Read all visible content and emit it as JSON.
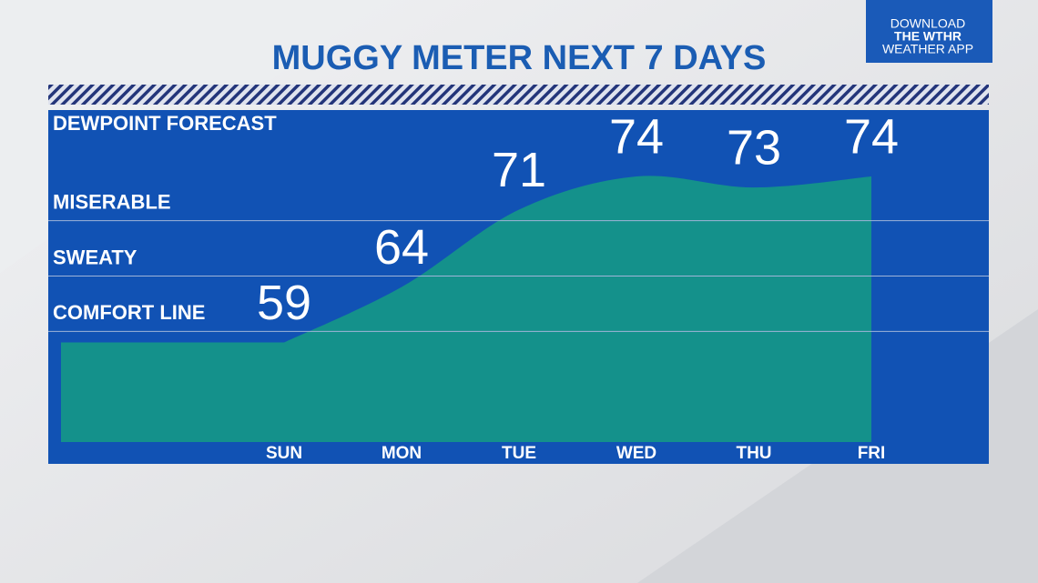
{
  "chart_data": {
    "type": "area",
    "title": "MUGGY METER NEXT 7 DAYS",
    "subtitle": "DEWPOINT FORECAST",
    "categories": [
      "SUN",
      "MON",
      "TUE",
      "WED",
      "THU",
      "FRI"
    ],
    "values": [
      59,
      64,
      71,
      74,
      73,
      74
    ],
    "color": "#14918b",
    "ylim": [
      50,
      80
    ],
    "yticks": [
      {
        "value": 60,
        "label": "COMFORT LINE"
      },
      {
        "value": 65,
        "label": "SWEATY"
      },
      {
        "value": 70,
        "label": "MISERABLE"
      }
    ],
    "grid": true
  },
  "badge": {
    "lines": [
      "DOWNLOAD",
      "THE WTHR",
      "WEATHER APP"
    ]
  }
}
